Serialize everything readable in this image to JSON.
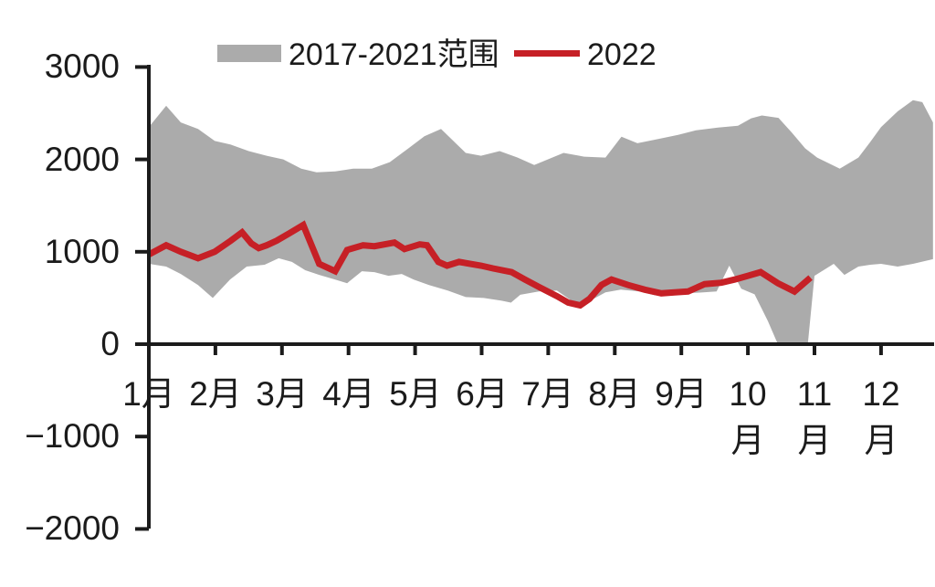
{
  "legend": {
    "band_label": "2017-2021范围",
    "line_label": "2022"
  },
  "colors": {
    "band": "#ABABAB",
    "line": "#C62026",
    "axis": "#1b1b1b",
    "text": "#1b1b1b",
    "background": "#ffffff"
  },
  "chart_data": {
    "type": "area",
    "title": "",
    "grid": false,
    "legend_position": "top",
    "x_axis": {
      "unit": "month",
      "tick_positions": [
        1,
        2,
        3,
        4,
        5,
        6,
        7,
        8,
        9,
        10,
        11,
        12
      ],
      "tick_labels": [
        "1月",
        "2月",
        "3月",
        "4月",
        "5月",
        "6月",
        "7月",
        "8月",
        "9月",
        "10月",
        "11月",
        "12月"
      ],
      "range": [
        1,
        12.78
      ]
    },
    "y_axis": {
      "min": -2000,
      "max": 3000,
      "tick_interval": 1000,
      "tick_values": [
        3000,
        2000,
        1000,
        0,
        -1000,
        -2000
      ],
      "tick_labels": [
        "3000",
        "2000",
        "1000",
        "0",
        "−1000",
        "−2000"
      ]
    },
    "series": [
      {
        "name": "2017-2021范围",
        "type": "band",
        "color": "#ABABAB",
        "upper": [
          [
            1.0,
            2350
          ],
          [
            1.26,
            2580
          ],
          [
            1.48,
            2400
          ],
          [
            1.74,
            2330
          ],
          [
            1.99,
            2200
          ],
          [
            2.23,
            2160
          ],
          [
            2.5,
            2090
          ],
          [
            2.77,
            2040
          ],
          [
            3.02,
            2000
          ],
          [
            3.29,
            1900
          ],
          [
            3.52,
            1860
          ],
          [
            3.8,
            1870
          ],
          [
            4.07,
            1900
          ],
          [
            4.35,
            1900
          ],
          [
            4.62,
            1970
          ],
          [
            4.9,
            2120
          ],
          [
            5.14,
            2250
          ],
          [
            5.39,
            2330
          ],
          [
            5.76,
            2070
          ],
          [
            5.99,
            2040
          ],
          [
            6.27,
            2090
          ],
          [
            6.54,
            2020
          ],
          [
            6.79,
            1940
          ],
          [
            7.23,
            2070
          ],
          [
            7.54,
            2030
          ],
          [
            7.86,
            2020
          ],
          [
            8.1,
            2245
          ],
          [
            8.34,
            2175
          ],
          [
            8.62,
            2215
          ],
          [
            8.95,
            2265
          ],
          [
            9.22,
            2315
          ],
          [
            9.55,
            2345
          ],
          [
            9.85,
            2365
          ],
          [
            10.05,
            2445
          ],
          [
            10.21,
            2475
          ],
          [
            10.46,
            2450
          ],
          [
            10.66,
            2290
          ],
          [
            10.86,
            2120
          ],
          [
            11.04,
            2020
          ],
          [
            11.38,
            1900
          ],
          [
            11.66,
            2020
          ],
          [
            11.84,
            2190
          ],
          [
            12.0,
            2350
          ],
          [
            12.25,
            2520
          ],
          [
            12.48,
            2640
          ],
          [
            12.62,
            2620
          ],
          [
            12.78,
            2400
          ]
        ],
        "lower": [
          [
            1.0,
            870
          ],
          [
            1.26,
            840
          ],
          [
            1.48,
            760
          ],
          [
            1.74,
            640
          ],
          [
            1.96,
            500
          ],
          [
            2.22,
            700
          ],
          [
            2.47,
            840
          ],
          [
            2.74,
            860
          ],
          [
            2.95,
            930
          ],
          [
            3.15,
            890
          ],
          [
            3.35,
            800
          ],
          [
            3.56,
            750
          ],
          [
            3.8,
            700
          ],
          [
            3.98,
            660
          ],
          [
            4.2,
            790
          ],
          [
            4.39,
            780
          ],
          [
            4.6,
            740
          ],
          [
            4.8,
            760
          ],
          [
            4.98,
            700
          ],
          [
            5.21,
            640
          ],
          [
            5.49,
            580
          ],
          [
            5.76,
            510
          ],
          [
            6.03,
            500
          ],
          [
            6.3,
            470
          ],
          [
            6.44,
            450
          ],
          [
            6.58,
            535
          ],
          [
            6.86,
            570
          ],
          [
            7.13,
            580
          ],
          [
            7.31,
            490
          ],
          [
            7.48,
            400
          ],
          [
            7.68,
            490
          ],
          [
            7.86,
            560
          ],
          [
            8.09,
            590
          ],
          [
            8.37,
            570
          ],
          [
            8.6,
            530
          ],
          [
            8.82,
            540
          ],
          [
            9.05,
            550
          ],
          [
            9.33,
            560
          ],
          [
            9.53,
            570
          ],
          [
            9.72,
            850
          ],
          [
            9.9,
            600
          ],
          [
            10.1,
            540
          ],
          [
            10.3,
            250
          ],
          [
            10.45,
            0
          ],
          [
            10.9,
            0
          ],
          [
            11.0,
            740
          ],
          [
            11.29,
            870
          ],
          [
            11.45,
            750
          ],
          [
            11.66,
            840
          ],
          [
            11.84,
            860
          ],
          [
            12.0,
            870
          ],
          [
            12.25,
            840
          ],
          [
            12.48,
            870
          ],
          [
            12.78,
            920
          ]
        ]
      },
      {
        "name": "2022",
        "type": "line",
        "color": "#C62026",
        "stroke_width": 7,
        "points": [
          [
            1.0,
            970
          ],
          [
            1.26,
            1070
          ],
          [
            1.48,
            1000
          ],
          [
            1.74,
            930
          ],
          [
            1.99,
            1000
          ],
          [
            2.23,
            1120
          ],
          [
            2.4,
            1210
          ],
          [
            2.54,
            1090
          ],
          [
            2.65,
            1040
          ],
          [
            2.77,
            1070
          ],
          [
            2.92,
            1120
          ],
          [
            3.11,
            1200
          ],
          [
            3.32,
            1290
          ],
          [
            3.56,
            870
          ],
          [
            3.8,
            790
          ],
          [
            3.98,
            1020
          ],
          [
            4.22,
            1070
          ],
          [
            4.39,
            1060
          ],
          [
            4.69,
            1100
          ],
          [
            4.84,
            1030
          ],
          [
            5.07,
            1080
          ],
          [
            5.18,
            1070
          ],
          [
            5.35,
            890
          ],
          [
            5.48,
            850
          ],
          [
            5.66,
            890
          ],
          [
            5.99,
            850
          ],
          [
            6.17,
            820
          ],
          [
            6.45,
            780
          ],
          [
            6.65,
            700
          ],
          [
            6.86,
            620
          ],
          [
            7.13,
            520
          ],
          [
            7.3,
            450
          ],
          [
            7.48,
            420
          ],
          [
            7.62,
            490
          ],
          [
            7.8,
            640
          ],
          [
            7.95,
            700
          ],
          [
            8.2,
            640
          ],
          [
            8.45,
            590
          ],
          [
            8.7,
            550
          ],
          [
            8.9,
            560
          ],
          [
            9.1,
            570
          ],
          [
            9.35,
            650
          ],
          [
            9.6,
            665
          ],
          [
            9.8,
            700
          ],
          [
            10.0,
            740
          ],
          [
            10.19,
            780
          ],
          [
            10.45,
            660
          ],
          [
            10.7,
            570
          ],
          [
            10.94,
            720
          ]
        ]
      }
    ]
  }
}
